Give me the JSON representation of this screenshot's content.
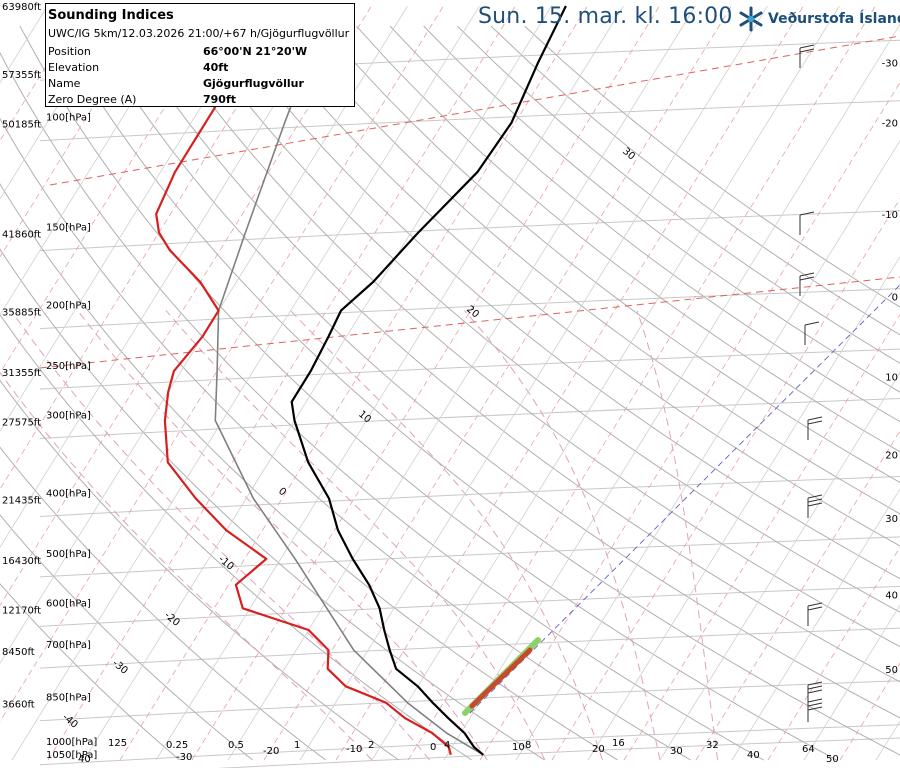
{
  "header": {
    "date_text": "Sun. 15. mar. kl. 16:00",
    "org_name": "Veðurstofa Íslands"
  },
  "info": {
    "title": "Sounding Indices",
    "run": "UWC/IG 5km/12.03.2026 21:00/+67 h/Gjögurflugvöllur",
    "rows": [
      {
        "key": "Position",
        "value": "66°00'N 21°20'W"
      },
      {
        "key": "Elevation",
        "value": "40ft"
      },
      {
        "key": "Name",
        "value": "Gjögurflugvöllur"
      },
      {
        "key": "Zero Degree (A)",
        "value": "790ft"
      }
    ]
  },
  "chart_data": {
    "type": "line",
    "title": "",
    "colors": {
      "temperature": "#000000",
      "dewpoint": "#d62020",
      "parcel": "#808080",
      "isotherm_dashed": "#e8a0a0",
      "dry_adiabat": "#b0b0b0",
      "moist_adiabat": "#e0a0c0",
      "isobar": "#c8c8c8",
      "tropopause": "#e06060"
    },
    "pressure_levels": [
      {
        "p": 100,
        "label": "100[hPa]",
        "alt": "50185ft"
      },
      {
        "p": 150,
        "label": "150[hPa]",
        "alt": "41860ft"
      },
      {
        "p": 200,
        "label": "200[hPa]",
        "alt": "35885ft"
      },
      {
        "p": 250,
        "label": "250[hPa]",
        "alt": "31355ft"
      },
      {
        "p": 300,
        "label": "300[hPa]",
        "alt": "27575ft"
      },
      {
        "p": 400,
        "label": "400[hPa]",
        "alt": "21435ft"
      },
      {
        "p": 500,
        "label": "500[hPa]",
        "alt": "16430ft"
      },
      {
        "p": 600,
        "label": "600[hPa]",
        "alt": "12170ft"
      },
      {
        "p": 700,
        "label": "700[hPa]",
        "alt": "8450ft"
      },
      {
        "p": 850,
        "label": "850[hPa]",
        "alt": "3660ft"
      },
      {
        "p": 1000,
        "label": "1000[hPa]",
        "alt": ""
      },
      {
        "p": 1050,
        "label": "1050[hPa]",
        "alt": ""
      }
    ],
    "top_altitude_labels": [
      "63980ft",
      "57355ft"
    ],
    "top_pressures": [
      65,
      80
    ],
    "right_axis_labels": [
      {
        "p": 80,
        "label": "-30"
      },
      {
        "p": 100,
        "label": "-20"
      },
      {
        "p": 140,
        "label": "-10"
      },
      {
        "p": 190,
        "label": "0"
      },
      {
        "p": 255,
        "label": "10"
      },
      {
        "p": 340,
        "label": "20"
      },
      {
        "p": 430,
        "label": "30"
      },
      {
        "p": 570,
        "label": "40"
      },
      {
        "p": 750,
        "label": "50"
      }
    ],
    "bottom_labels": [
      "40",
      "125",
      "-30",
      "0.25",
      "0.5",
      "-20",
      "1",
      "-10",
      "2",
      "0",
      "4",
      "10",
      "8",
      "20",
      "16",
      "30",
      "32",
      "40",
      "64",
      "50"
    ],
    "diag_labels": [
      {
        "t": 30,
        "label": "30"
      },
      {
        "t": 20,
        "label": "20"
      },
      {
        "t": 10,
        "label": "10"
      },
      {
        "t": 0,
        "label": "0"
      },
      {
        "t": -10,
        "label": "-10"
      },
      {
        "t": -20,
        "label": "-20"
      },
      {
        "t": -30,
        "label": "-30"
      },
      {
        "t": -40,
        "label": "-40"
      }
    ],
    "temperature": [
      {
        "p": 1030,
        "t": 5.0
      },
      {
        "p": 1000,
        "t": 3.0
      },
      {
        "p": 950,
        "t": 0.5
      },
      {
        "p": 900,
        "t": -3.0
      },
      {
        "p": 850,
        "t": -6.5
      },
      {
        "p": 800,
        "t": -10.0
      },
      {
        "p": 750,
        "t": -14.5
      },
      {
        "p": 700,
        "t": -17.0
      },
      {
        "p": 650,
        "t": -19.5
      },
      {
        "p": 600,
        "t": -22.0
      },
      {
        "p": 550,
        "t": -25.5
      },
      {
        "p": 500,
        "t": -30.0
      },
      {
        "p": 450,
        "t": -34.5
      },
      {
        "p": 400,
        "t": -38.5
      },
      {
        "p": 350,
        "t": -44.5
      },
      {
        "p": 300,
        "t": -50.0
      },
      {
        "p": 280,
        "t": -52.0
      },
      {
        "p": 250,
        "t": -52.0
      },
      {
        "p": 220,
        "t": -52.5
      },
      {
        "p": 200,
        "t": -53.0
      },
      {
        "p": 180,
        "t": -51.0
      },
      {
        "p": 150,
        "t": -49.0
      },
      {
        "p": 120,
        "t": -46.0
      },
      {
        "p": 100,
        "t": -45.5
      },
      {
        "p": 80,
        "t": -47.0
      },
      {
        "p": 65,
        "t": -48.0
      }
    ],
    "dewpoint": [
      {
        "p": 1030,
        "t": 0.5
      },
      {
        "p": 1000,
        "t": -0.5
      },
      {
        "p": 950,
        "t": -4.0
      },
      {
        "p": 900,
        "t": -9.0
      },
      {
        "p": 850,
        "t": -13.0
      },
      {
        "p": 800,
        "t": -20.0
      },
      {
        "p": 750,
        "t": -24.0
      },
      {
        "p": 700,
        "t": -25.5
      },
      {
        "p": 650,
        "t": -30.0
      },
      {
        "p": 600,
        "t": -41.0
      },
      {
        "p": 550,
        "t": -44.0
      },
      {
        "p": 500,
        "t": -42.0
      },
      {
        "p": 450,
        "t": -50.0
      },
      {
        "p": 400,
        "t": -57.0
      },
      {
        "p": 350,
        "t": -64.0
      },
      {
        "p": 300,
        "t": -68.0
      },
      {
        "p": 270,
        "t": -70.0
      },
      {
        "p": 250,
        "t": -71.0
      },
      {
        "p": 220,
        "t": -70.0
      },
      {
        "p": 200,
        "t": -70.0
      },
      {
        "p": 180,
        "t": -75.0
      },
      {
        "p": 160,
        "t": -82.0
      },
      {
        "p": 150,
        "t": -85.0
      },
      {
        "p": 140,
        "t": -87.0
      },
      {
        "p": 120,
        "t": -88.0
      },
      {
        "p": 100,
        "t": -88.0
      },
      {
        "p": 80,
        "t": -88.0
      },
      {
        "p": 65,
        "t": -87.0
      }
    ],
    "parcel": [
      {
        "p": 1030,
        "t": 5.0
      },
      {
        "p": 950,
        "t": -2.0
      },
      {
        "p": 850,
        "t": -10.0
      },
      {
        "p": 700,
        "t": -22.0
      },
      {
        "p": 500,
        "t": -38.0
      },
      {
        "p": 400,
        "t": -49.0
      },
      {
        "p": 300,
        "t": -61.0
      },
      {
        "p": 250,
        "t": -65.0
      },
      {
        "p": 200,
        "t": -70.0
      },
      {
        "p": 150,
        "t": -73.0
      },
      {
        "p": 100,
        "t": -77.0
      },
      {
        "p": 80,
        "t": -79.0
      }
    ],
    "ylim": [
      1050,
      65
    ],
    "xlim": [
      -40,
      50
    ]
  }
}
